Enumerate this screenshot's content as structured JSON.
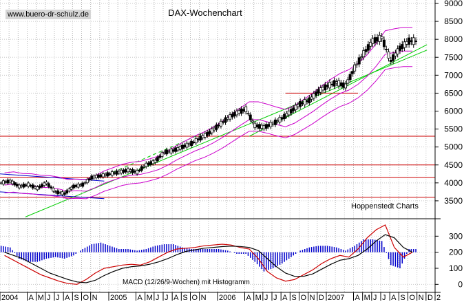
{
  "site_label": "www.buero-dr-schulz.de",
  "chart_data": [
    {
      "type": "candlestick",
      "title": "DAX-Wochenchart",
      "annotation": "Hoppenstedt Charts",
      "ylim": [
        3000,
        9000
      ],
      "yticks": [
        3500,
        4000,
        4500,
        5000,
        5500,
        6000,
        6500,
        7000,
        7500,
        8000,
        8500,
        9000
      ],
      "grid": true,
      "legend": "none",
      "overlays": [
        "upper Bollinger band",
        "lower Bollinger band",
        "moving average",
        "trendlines",
        "horizontal support/resistance lines"
      ],
      "horizontal_lines": [
        3600,
        4150,
        4500,
        5300
      ],
      "colors": {
        "price": "#000000",
        "bands": "#cc00cc",
        "trend": "#00cc00",
        "levels": "#cc0000",
        "channel": "#0000cc"
      },
      "x": [
        "2004-01",
        "2004-02",
        "2004-03",
        "2004-04",
        "2004-05",
        "2004-06",
        "2004-07",
        "2004-08",
        "2004-09",
        "2004-10",
        "2004-11",
        "2004-12",
        "2005-01",
        "2005-02",
        "2005-03",
        "2005-04",
        "2005-05",
        "2005-06",
        "2005-07",
        "2005-08",
        "2005-09",
        "2005-10",
        "2005-11",
        "2005-12",
        "2006-01",
        "2006-02",
        "2006-03",
        "2006-04",
        "2006-05",
        "2006-06",
        "2006-07",
        "2006-08",
        "2006-09",
        "2006-10",
        "2006-11",
        "2006-12",
        "2007-01",
        "2007-02",
        "2007-03",
        "2007-04",
        "2007-05",
        "2007-06",
        "2007-07",
        "2007-08",
        "2007-09",
        "2007-10"
      ],
      "values": [
        4000,
        4050,
        3900,
        3950,
        3850,
        4000,
        3750,
        3700,
        3900,
        3950,
        4150,
        4200,
        4250,
        4300,
        4350,
        4300,
        4500,
        4600,
        4850,
        4900,
        5000,
        5100,
        5250,
        5400,
        5600,
        5800,
        5950,
        6050,
        5600,
        5550,
        5650,
        5800,
        6000,
        6200,
        6300,
        6550,
        6700,
        6800,
        6700,
        7200,
        7600,
        7950,
        8050,
        7400,
        7750,
        7950
      ]
    },
    {
      "type": "line+bar",
      "title": "MACD (12/26/9-Wochen) mit Histogramm",
      "ylim": [
        -50,
        400
      ],
      "yticks": [
        0,
        100,
        200,
        300
      ],
      "x": [
        "2004-01",
        "2004-02",
        "2004-03",
        "2004-04",
        "2004-05",
        "2004-06",
        "2004-07",
        "2004-08",
        "2004-09",
        "2004-10",
        "2004-11",
        "2004-12",
        "2005-01",
        "2005-02",
        "2005-03",
        "2005-04",
        "2005-05",
        "2005-06",
        "2005-07",
        "2005-08",
        "2005-09",
        "2005-10",
        "2005-11",
        "2005-12",
        "2006-01",
        "2006-02",
        "2006-03",
        "2006-04",
        "2006-05",
        "2006-06",
        "2006-07",
        "2006-08",
        "2006-09",
        "2006-10",
        "2006-11",
        "2006-12",
        "2007-01",
        "2007-02",
        "2007-03",
        "2007-04",
        "2007-05",
        "2007-06",
        "2007-07",
        "2007-08",
        "2007-09",
        "2007-10"
      ],
      "series": [
        {
          "name": "MACD",
          "color": "#cc0000",
          "values": [
            180,
            150,
            120,
            90,
            60,
            40,
            20,
            5,
            0,
            30,
            70,
            100,
            110,
            120,
            125,
            120,
            140,
            170,
            200,
            220,
            225,
            230,
            240,
            245,
            250,
            245,
            230,
            220,
            160,
            80,
            40,
            20,
            30,
            60,
            90,
            130,
            160,
            180,
            170,
            220,
            290,
            340,
            370,
            230,
            170,
            200
          ]
        },
        {
          "name": "Signal",
          "color": "#000000",
          "values": [
            200,
            180,
            160,
            130,
            100,
            70,
            50,
            30,
            15,
            10,
            25,
            55,
            80,
            100,
            110,
            115,
            125,
            140,
            160,
            185,
            205,
            215,
            225,
            230,
            235,
            238,
            236,
            230,
            210,
            160,
            110,
            70,
            50,
            50,
            65,
            95,
            125,
            150,
            160,
            180,
            220,
            270,
            310,
            290,
            230,
            200
          ]
        },
        {
          "name": "Histogramm",
          "color": "#0000cc",
          "values": [
            40,
            30,
            -40,
            -60,
            -60,
            -40,
            -30,
            -40,
            -20,
            20,
            50,
            60,
            40,
            20,
            20,
            10,
            20,
            40,
            50,
            50,
            30,
            20,
            20,
            20,
            20,
            10,
            -10,
            -10,
            -60,
            -120,
            -100,
            -70,
            -30,
            10,
            30,
            40,
            40,
            30,
            10,
            40,
            80,
            80,
            70,
            -80,
            -100,
            20
          ]
        }
      ]
    }
  ],
  "x_axis": {
    "labels": [
      "2004",
      "A",
      "M",
      "J",
      "J",
      "A",
      "S",
      "O",
      "N",
      "2005",
      "A",
      "M",
      "J",
      "J",
      "A",
      "S",
      "O",
      "N",
      "2006",
      "A",
      "M",
      "J",
      "J",
      "A",
      "S",
      "O",
      "N",
      "D",
      "2007",
      "A",
      "M",
      "J",
      "J",
      "A",
      "S",
      "O",
      "N",
      "D",
      "2"
    ],
    "label_months": [
      0,
      3,
      4,
      5,
      6,
      7,
      8,
      9,
      10,
      12,
      15,
      16,
      17,
      18,
      19,
      20,
      21,
      22,
      24,
      27,
      28,
      29,
      30,
      31,
      32,
      33,
      34,
      35,
      36,
      39,
      40,
      41,
      42,
      43,
      44,
      45,
      46,
      47,
      48
    ]
  }
}
